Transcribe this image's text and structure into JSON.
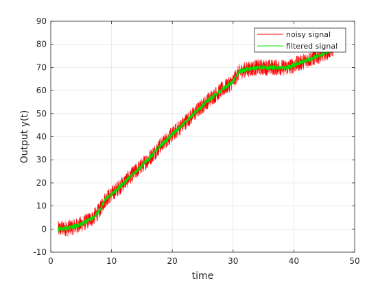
{
  "chart_data": {
    "type": "line",
    "title": "",
    "xlabel": "time",
    "ylabel": "Output y(t)",
    "xlim": [
      0,
      50
    ],
    "ylim": [
      -10,
      90
    ],
    "xticks": [
      0,
      10,
      20,
      30,
      40,
      50
    ],
    "yticks": [
      -10,
      0,
      10,
      20,
      30,
      40,
      50,
      60,
      70,
      80,
      90
    ],
    "grid": true,
    "legend_position": "top-right",
    "x_range": [
      1.2,
      46.5
    ],
    "series": [
      {
        "name": "noisy signal",
        "color": "#ff0000",
        "noise_amplitude": 3.5,
        "x": [
          1.2,
          3,
          5,
          7,
          8,
          9,
          10,
          12,
          14,
          16,
          18,
          20,
          22,
          24,
          26,
          28,
          30,
          31,
          32,
          34,
          36,
          38,
          39,
          40,
          42,
          44,
          46.5
        ],
        "y": [
          0,
          0.5,
          2,
          5,
          8,
          13,
          15,
          20,
          25,
          30,
          36,
          41,
          46,
          51,
          56,
          60,
          64,
          68,
          69,
          70,
          70,
          70,
          70,
          71,
          73,
          75,
          78
        ]
      },
      {
        "name": "filtered signal",
        "color": "#00e000",
        "noise_amplitude": 1.0,
        "x": [
          1.2,
          3,
          5,
          7,
          8,
          9,
          10,
          12,
          14,
          16,
          18,
          20,
          22,
          24,
          26,
          28,
          30,
          31,
          32,
          34,
          36,
          38,
          39,
          40,
          42,
          44,
          46.5
        ],
        "y": [
          0,
          0.5,
          2,
          5,
          8,
          13,
          15,
          20,
          25,
          30,
          36,
          41,
          46,
          51,
          56,
          60,
          64,
          68,
          69,
          70,
          70,
          70,
          70,
          71,
          73,
          75,
          78
        ]
      }
    ]
  }
}
